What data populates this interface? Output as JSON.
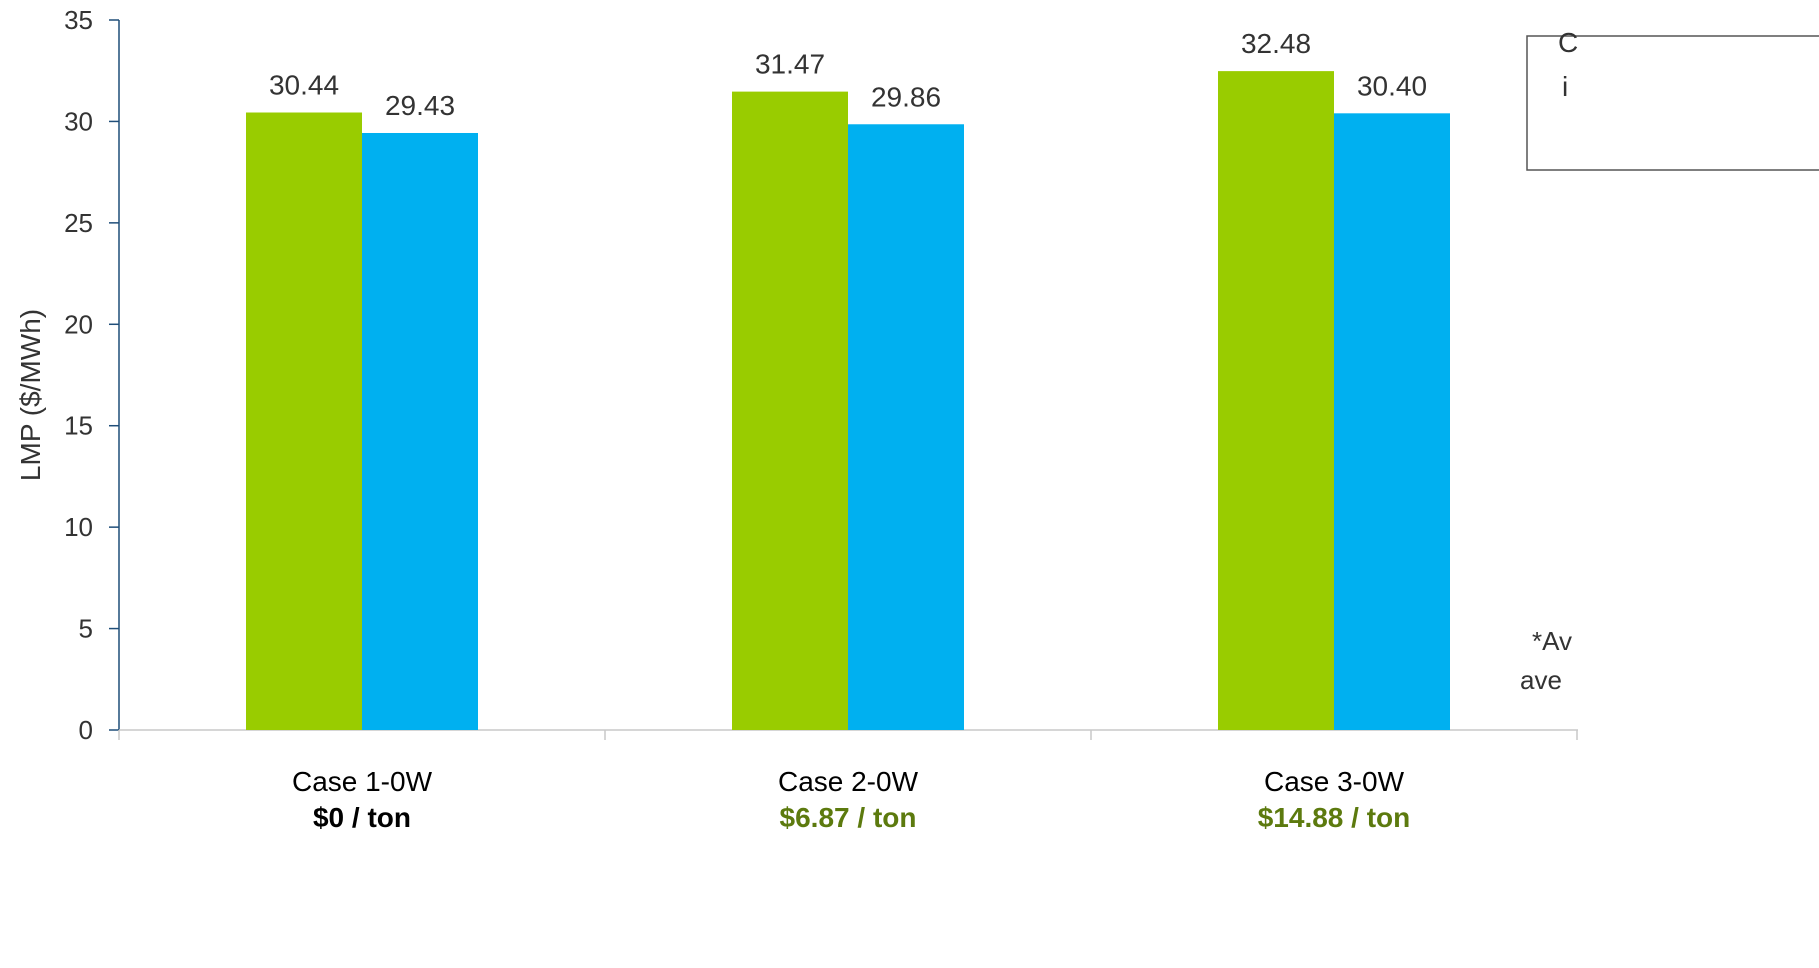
{
  "chart_data": {
    "type": "bar",
    "categories": [
      "Case 1-0W",
      "Case 2-0W",
      "Case 3-0W"
    ],
    "category_sublabels": [
      {
        "text": "$0 / ton",
        "color": "#000000"
      },
      {
        "text": "$6.87 / ton",
        "color": "#5c7a0e"
      },
      {
        "text": "$14.88 / ton",
        "color": "#5c7a0e"
      }
    ],
    "series": [
      {
        "color": "#99cc00",
        "values": [
          30.44,
          31.47,
          32.48
        ]
      },
      {
        "color": "#00b0f0",
        "values": [
          29.43,
          29.86,
          30.4
        ]
      }
    ],
    "data_labels": [
      [
        "30.44",
        "31.47",
        "32.48"
      ],
      [
        "29.43",
        "29.86",
        "30.40"
      ]
    ],
    "ylabel": "LMP ($/MWh)",
    "ylim": [
      0,
      35
    ],
    "yticks": [
      0,
      5,
      10,
      15,
      20,
      25,
      30,
      35
    ],
    "grid": false,
    "legend_fragment": [
      "C",
      "i"
    ],
    "note_fragment": [
      "*Av",
      "ave"
    ],
    "colors": {
      "axis": "#1f4e79",
      "text": "#333333"
    }
  }
}
